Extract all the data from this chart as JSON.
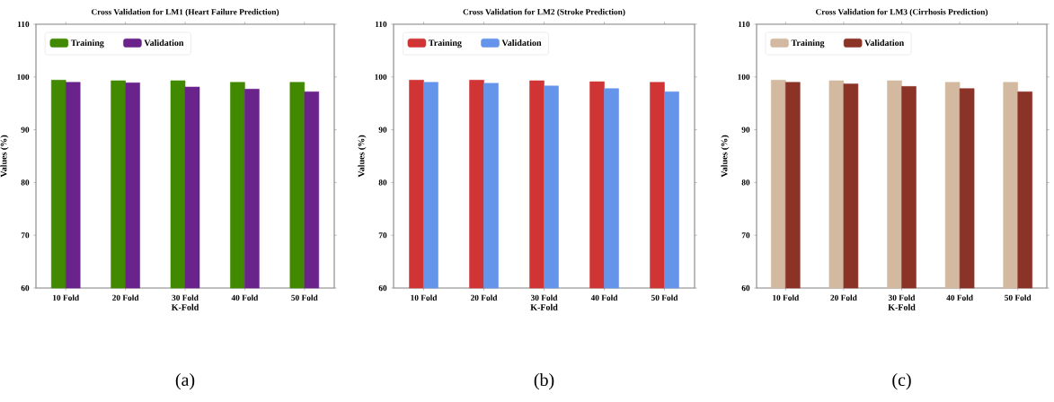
{
  "chart_data": [
    {
      "type": "bar",
      "title": "Cross Validation for LM1 (Heart Failure Prediction)",
      "xlabel": "K-Fold",
      "ylabel": "Values (%)",
      "categories": [
        "10 Fold",
        "20 Fold",
        "30 Fold",
        "40 Fold",
        "50 Fold"
      ],
      "series": [
        {
          "name": "Training",
          "color": "#418a00",
          "values": [
            99.4,
            99.3,
            99.3,
            99.0,
            99.0
          ]
        },
        {
          "name": "Validation",
          "color": "#6a238a",
          "values": [
            99.0,
            98.9,
            98.1,
            97.7,
            97.2
          ]
        }
      ],
      "ylim": [
        60,
        110
      ],
      "yticks": [
        60,
        70,
        80,
        90,
        100,
        110
      ],
      "legend": "top left",
      "annotations": [
        "(a)"
      ]
    },
    {
      "type": "bar",
      "title": "Cross Validation for LM2 (Stroke Prediction)",
      "xlabel": "K-Fold",
      "ylabel": "Values (%)",
      "categories": [
        "10 Fold",
        "20 Fold",
        "30 Fold",
        "40 Fold",
        "50 Fold"
      ],
      "series": [
        {
          "name": "Training",
          "color": "#d03434",
          "values": [
            99.4,
            99.4,
            99.3,
            99.1,
            99.0
          ]
        },
        {
          "name": "Validation",
          "color": "#6495eb",
          "values": [
            99.0,
            98.8,
            98.3,
            97.8,
            97.2
          ]
        }
      ],
      "ylim": [
        60,
        110
      ],
      "yticks": [
        60,
        70,
        80,
        90,
        100,
        110
      ],
      "legend": "top left",
      "annotations": [
        "(b)"
      ]
    },
    {
      "type": "bar",
      "title": "Cross Validation for LM3 (Cirrhosis Prediction)",
      "xlabel": "K-Fold",
      "ylabel": "Values (%)",
      "categories": [
        "10 Fold",
        "20 Fold",
        "30 Fold",
        "40 Fold",
        "50 Fold"
      ],
      "series": [
        {
          "name": "Training",
          "color": "#d2b9a0",
          "values": [
            99.4,
            99.3,
            99.3,
            99.0,
            99.0
          ]
        },
        {
          "name": "Validation",
          "color": "#8b3327",
          "values": [
            99.0,
            98.7,
            98.2,
            97.8,
            97.2
          ]
        }
      ],
      "ylim": [
        60,
        110
      ],
      "yticks": [
        60,
        70,
        80,
        90,
        100,
        110
      ],
      "legend": "top left",
      "annotations": [
        "(c)"
      ]
    }
  ]
}
